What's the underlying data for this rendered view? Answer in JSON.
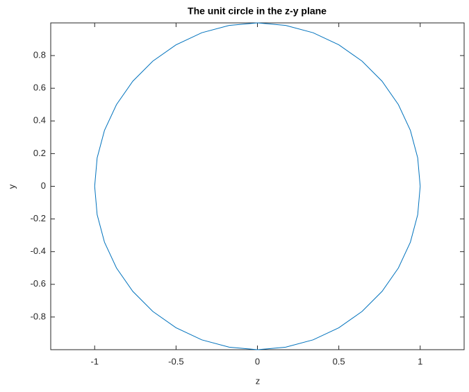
{
  "chart_data": {
    "type": "line",
    "title": "The unit circle in the z-y plane",
    "x_label": "z",
    "y_label": "y",
    "color": "#0072bd",
    "x": [
      1,
      0.9848,
      0.9397,
      0.866,
      0.766,
      0.6428,
      0.5,
      0.342,
      0.1736,
      0,
      -0.1736,
      -0.342,
      -0.5,
      -0.6428,
      -0.766,
      -0.866,
      -0.9397,
      -0.9848,
      -1,
      -0.9848,
      -0.9397,
      -0.866,
      -0.766,
      -0.6428,
      -0.5,
      -0.342,
      -0.1736,
      0,
      0.1736,
      0.342,
      0.5,
      0.6428,
      0.766,
      0.866,
      0.9397,
      0.9848,
      1
    ],
    "values": [
      0,
      0.1736,
      0.342,
      0.5,
      0.6428,
      0.766,
      0.866,
      0.9397,
      0.9848,
      1,
      0.9848,
      0.9397,
      0.866,
      0.766,
      0.6428,
      0.5,
      0.342,
      0.1736,
      0,
      -0.1736,
      -0.342,
      -0.5,
      -0.6428,
      -0.766,
      -0.866,
      -0.9397,
      -0.9848,
      -1,
      -0.9848,
      -0.9397,
      -0.866,
      -0.766,
      -0.6428,
      -0.5,
      -0.342,
      -0.1736,
      0
    ],
    "xlim": [
      -1.27,
      1.27
    ],
    "ylim": [
      -1,
      1
    ],
    "xticks": [
      -1,
      -0.5,
      0,
      0.5,
      1
    ],
    "yticks": [
      -0.8,
      -0.6,
      -0.4,
      -0.2,
      0,
      0.2,
      0.4,
      0.6,
      0.8
    ],
    "grid": false
  }
}
